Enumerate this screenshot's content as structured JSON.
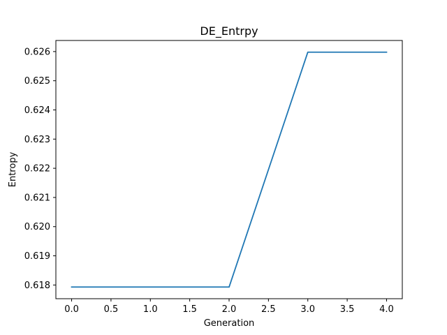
{
  "chart_data": {
    "type": "line",
    "title": "DE_Entrpy",
    "xlabel": "Generation",
    "ylabel": "Entropy",
    "x": [
      0,
      1,
      2,
      3,
      4
    ],
    "series": [
      {
        "values": [
          0.61793,
          0.61793,
          0.61793,
          0.62598,
          0.62598
        ],
        "color": "#1f77b4"
      }
    ],
    "xlim": [
      -0.2,
      4.2
    ],
    "ylim": [
      0.61753,
      0.62638
    ],
    "xticks": [
      0.0,
      0.5,
      1.0,
      1.5,
      2.0,
      2.5,
      3.0,
      3.5,
      4.0
    ],
    "xtick_labels": [
      "0.0",
      "0.5",
      "1.0",
      "1.5",
      "2.0",
      "2.5",
      "3.0",
      "3.5",
      "4.0"
    ],
    "yticks": [
      0.618,
      0.619,
      0.62,
      0.621,
      0.622,
      0.623,
      0.624,
      0.625,
      0.626
    ],
    "ytick_labels": [
      "0.618",
      "0.619",
      "0.620",
      "0.621",
      "0.622",
      "0.623",
      "0.624",
      "0.625",
      "0.626"
    ],
    "grid": false,
    "legend": "none"
  }
}
